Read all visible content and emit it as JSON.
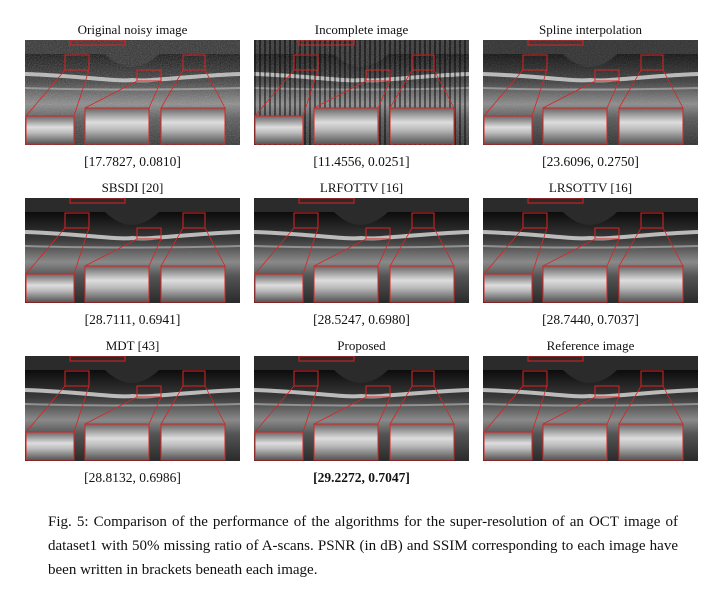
{
  "figure": {
    "panels": [
      {
        "title": "Original noisy image",
        "metrics": "[17.7827, 0.0810]"
      },
      {
        "title": "Incomplete image",
        "metrics": "[11.4556, 0.0251]"
      },
      {
        "title": "Spline interpolation",
        "metrics": "[23.6096, 0.2750]"
      },
      {
        "title": "SBSDI [20]",
        "metrics": "[28.7111, 0.6941]"
      },
      {
        "title": "LRFOTTV [16]",
        "metrics": "[28.5247, 0.6980]"
      },
      {
        "title": "LRSOTTV [16]",
        "metrics": "[28.7440, 0.7037]"
      },
      {
        "title": "MDT [43]",
        "metrics": "[28.8132, 0.6986]"
      },
      {
        "title": "Proposed",
        "metrics": "[29.2272, 0.7047]"
      },
      {
        "title": "Reference image",
        "metrics": ""
      }
    ],
    "caption": "Fig. 5: Comparison of the performance of the algorithms for the super-resolution of an OCT image of dataset1 with 50% missing ratio of A-scans. PSNR (in dB) and SSIM corresponding to each image have been written in brackets beneath each image."
  }
}
